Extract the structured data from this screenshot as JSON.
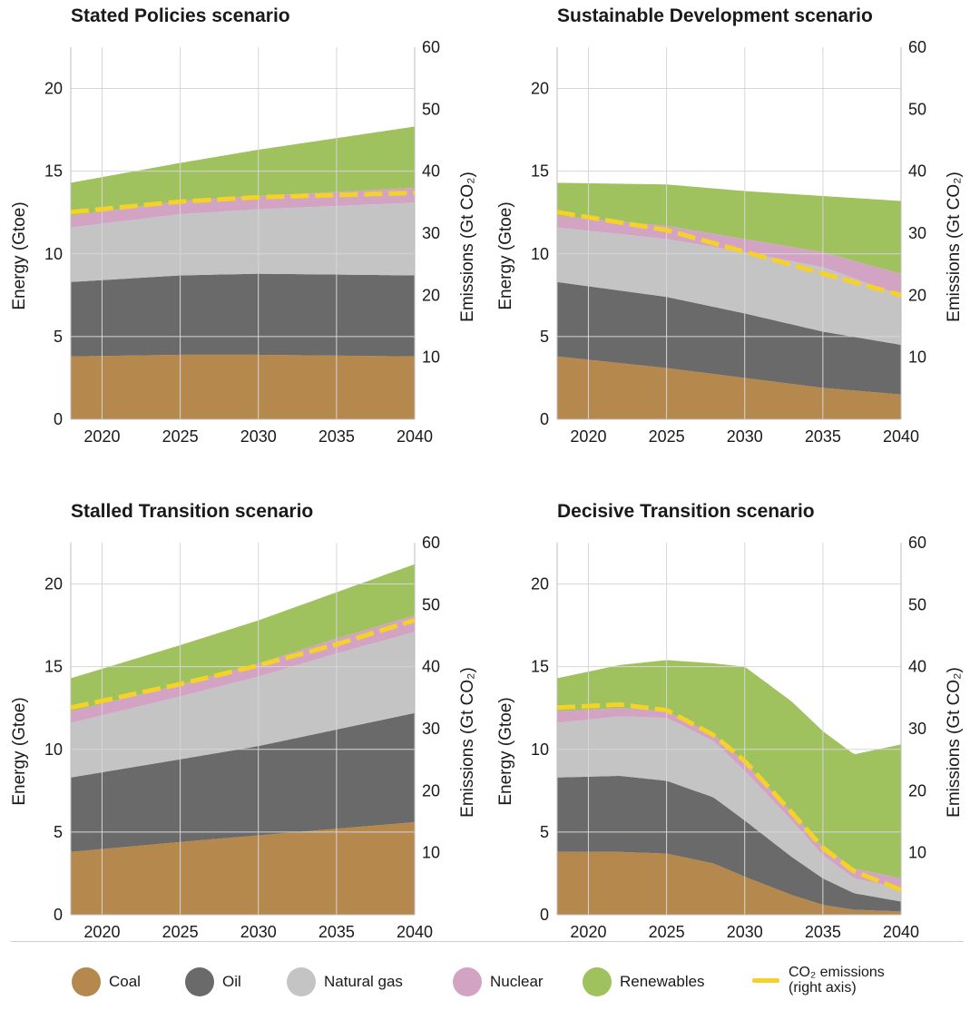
{
  "legend": {
    "coal": "Coal",
    "oil": "Oil",
    "gas": "Natural gas",
    "nuclear": "Nuclear",
    "renewables": "Renewables",
    "co2_line1": "CO₂ emissions",
    "co2_line2": "(right axis)"
  },
  "colors": {
    "coal": "#b5884d",
    "oil": "#6a6a6a",
    "gas": "#c4c4c4",
    "nuclear": "#d3a3c4",
    "renewables": "#9fc15e",
    "co2": "#f5d22a"
  },
  "chart_data": [
    {
      "type": "area",
      "title": "Stated Policies scenario",
      "ylabel": "Energy (Gtoe)",
      "y2label": "Emissions (Gt CO₂)",
      "xlim": [
        2018,
        2040
      ],
      "ylim": [
        0,
        22.5
      ],
      "y2lim": [
        0,
        60
      ],
      "xticks": [
        2020,
        2025,
        2030,
        2035,
        2040
      ],
      "yticks": [
        0,
        5,
        10,
        15,
        20
      ],
      "y2ticks": [
        10,
        20,
        30,
        40,
        50,
        60
      ],
      "x": [
        2018,
        2025,
        2030,
        2040
      ],
      "series": [
        {
          "name": "Coal",
          "key": "coal",
          "values": [
            3.8,
            3.9,
            3.9,
            3.8
          ]
        },
        {
          "name": "Oil",
          "key": "oil",
          "values": [
            4.5,
            4.8,
            4.9,
            4.9
          ]
        },
        {
          "name": "Natural gas",
          "key": "gas",
          "values": [
            3.3,
            3.7,
            3.9,
            4.4
          ]
        },
        {
          "name": "Nuclear",
          "key": "nuclear",
          "values": [
            0.7,
            0.8,
            0.8,
            0.9
          ]
        },
        {
          "name": "Renewables",
          "key": "renewables",
          "values": [
            2.0,
            2.3,
            2.8,
            3.7
          ]
        }
      ],
      "co2": {
        "name": "CO₂ emissions",
        "x": [
          2018,
          2025,
          2030,
          2040
        ],
        "values": [
          33.4,
          35.1,
          35.8,
          36.5
        ]
      }
    },
    {
      "type": "area",
      "title": "Sustainable Development scenario",
      "ylabel": "Energy (Gtoe)",
      "y2label": "Emissions (Gt CO₂)",
      "xlim": [
        2018,
        2040
      ],
      "ylim": [
        0,
        22.5
      ],
      "y2lim": [
        0,
        60
      ],
      "xticks": [
        2020,
        2025,
        2030,
        2035,
        2040
      ],
      "yticks": [
        0,
        5,
        10,
        15,
        20
      ],
      "y2ticks": [
        10,
        20,
        30,
        40,
        50,
        60
      ],
      "x": [
        2018,
        2025,
        2030,
        2035,
        2040
      ],
      "series": [
        {
          "name": "Coal",
          "key": "coal",
          "values": [
            3.8,
            3.1,
            2.5,
            1.9,
            1.5
          ]
        },
        {
          "name": "Oil",
          "key": "oil",
          "values": [
            4.5,
            4.3,
            3.9,
            3.4,
            3.0
          ]
        },
        {
          "name": "Natural gas",
          "key": "gas",
          "values": [
            3.3,
            3.5,
            3.7,
            3.9,
            3.0
          ]
        },
        {
          "name": "Nuclear",
          "key": "nuclear",
          "values": [
            0.7,
            0.8,
            0.8,
            0.9,
            1.3
          ]
        },
        {
          "name": "Renewables",
          "key": "renewables",
          "values": [
            2.0,
            2.5,
            2.9,
            3.4,
            4.4
          ]
        }
      ],
      "co2": {
        "name": "CO₂ emissions",
        "x": [
          2018,
          2025,
          2030,
          2035,
          2040
        ],
        "values": [
          33.4,
          30.5,
          27.0,
          23.5,
          20.0
        ]
      }
    },
    {
      "type": "area",
      "title": "Stalled Transition scenario",
      "ylabel": "Energy (Gtoe)",
      "y2label": "Emissions (Gt CO₂)",
      "xlim": [
        2018,
        2040
      ],
      "ylim": [
        0,
        22.5
      ],
      "y2lim": [
        0,
        60
      ],
      "xticks": [
        2020,
        2025,
        2030,
        2035,
        2040
      ],
      "yticks": [
        0,
        5,
        10,
        15,
        20
      ],
      "y2ticks": [
        10,
        20,
        30,
        40,
        50,
        60
      ],
      "x": [
        2018,
        2025,
        2030,
        2035,
        2040
      ],
      "series": [
        {
          "name": "Coal",
          "key": "coal",
          "values": [
            3.8,
            4.4,
            4.8,
            5.2,
            5.6
          ]
        },
        {
          "name": "Oil",
          "key": "oil",
          "values": [
            4.5,
            5.0,
            5.4,
            6.0,
            6.6
          ]
        },
        {
          "name": "Natural gas",
          "key": "gas",
          "values": [
            3.3,
            3.8,
            4.2,
            4.6,
            4.9
          ]
        },
        {
          "name": "Nuclear",
          "key": "nuclear",
          "values": [
            0.7,
            0.7,
            0.8,
            0.9,
            1.0
          ]
        },
        {
          "name": "Renewables",
          "key": "renewables",
          "values": [
            2.0,
            2.4,
            2.6,
            2.8,
            3.1
          ]
        }
      ],
      "co2": {
        "name": "CO₂ emissions",
        "x": [
          2018,
          2025,
          2030,
          2035,
          2040
        ],
        "values": [
          33.4,
          37.2,
          40.2,
          43.6,
          47.5
        ]
      }
    },
    {
      "type": "area",
      "title": "Decisive Transition scenario",
      "ylabel": "Energy (Gtoe)",
      "y2label": "Emissions (Gt CO₂)",
      "xlim": [
        2018,
        2040
      ],
      "ylim": [
        0,
        22.5
      ],
      "y2lim": [
        0,
        60
      ],
      "xticks": [
        2020,
        2025,
        2030,
        2035,
        2040
      ],
      "yticks": [
        0,
        5,
        10,
        15,
        20
      ],
      "y2ticks": [
        10,
        20,
        30,
        40,
        50,
        60
      ],
      "x": [
        2018,
        2022,
        2025,
        2028,
        2030,
        2033,
        2035,
        2037,
        2040
      ],
      "series": [
        {
          "name": "Coal",
          "key": "coal",
          "values": [
            3.8,
            3.8,
            3.7,
            3.1,
            2.3,
            1.2,
            0.6,
            0.3,
            0.2
          ]
        },
        {
          "name": "Oil",
          "key": "oil",
          "values": [
            4.5,
            4.6,
            4.4,
            4.0,
            3.4,
            2.3,
            1.6,
            1.0,
            0.6
          ]
        },
        {
          "name": "Natural gas",
          "key": "gas",
          "values": [
            3.3,
            3.6,
            3.8,
            3.4,
            3.0,
            2.2,
            1.4,
            0.9,
            0.8
          ]
        },
        {
          "name": "Nuclear",
          "key": "nuclear",
          "values": [
            0.7,
            0.5,
            0.4,
            0.4,
            0.5,
            0.5,
            0.5,
            0.6,
            0.6
          ]
        },
        {
          "name": "Renewables",
          "key": "renewables",
          "values": [
            2.0,
            2.6,
            3.1,
            4.3,
            5.8,
            6.7,
            7.0,
            6.9,
            8.1
          ]
        }
      ],
      "co2": {
        "name": "CO₂ emissions",
        "x": [
          2018,
          2022,
          2025,
          2028,
          2030,
          2033,
          2035,
          2037,
          2040
        ],
        "values": [
          33.4,
          33.9,
          33.0,
          29.0,
          24.8,
          16.5,
          10.8,
          7.0,
          4.0
        ]
      }
    }
  ]
}
